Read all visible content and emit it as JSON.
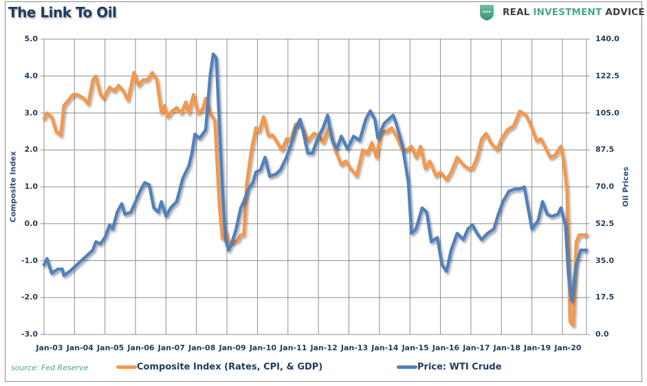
{
  "title": "The Link To Oil",
  "brand": {
    "prefix": "REAL ",
    "accent": "INVESTMENT",
    "suffix": " ADVICE",
    "icon": "shield-dots-icon",
    "accent_color": "#4aa58d"
  },
  "source": "source: Fed Reserve",
  "legend": [
    {
      "label": "Composite Index (Rates, CPI, & GDP)",
      "color": "#f79646"
    },
    {
      "label": "Price: WTI Crude",
      "color": "#4f81bd"
    }
  ],
  "chart_data": {
    "type": "line",
    "title": "The Link To Oil",
    "xlabel": "",
    "ylabel": "Composite Index",
    "y2label": "Oil Prices",
    "ylim": [
      -3.0,
      5.0
    ],
    "y2lim": [
      0.0,
      140.0
    ],
    "xlim": [
      2003.0,
      2020.83
    ],
    "yticks": [
      "5.0",
      "4.0",
      "3.0",
      "2.0",
      "1.0",
      "0.0",
      "-1.0",
      "-2.0",
      "-3.0"
    ],
    "y2ticks": [
      "140.0",
      "122.5",
      "105.0",
      "87.5",
      "70.0",
      "52.5",
      "35.0",
      "17.5",
      "0.0"
    ],
    "xticks": [
      "Jan-03",
      "Jan-04",
      "Jan-05",
      "Jan-06",
      "Jan-07",
      "Jan-08",
      "Jan-09",
      "Jan-10",
      "Jan-11",
      "Jan-12",
      "Jan-13",
      "Jan-14",
      "Jan-15",
      "Jan-16",
      "Jan-17",
      "Jan-18",
      "Jan-19",
      "Jan-20"
    ],
    "grid": true,
    "legend_position": "bottom",
    "series": [
      {
        "name": "Composite Index (Rates, CPI, & GDP)",
        "axis": "left",
        "color": "#f79646",
        "points": [
          [
            2003.0,
            2.85
          ],
          [
            2003.1,
            3.0
          ],
          [
            2003.25,
            2.9
          ],
          [
            2003.4,
            2.5
          ],
          [
            2003.55,
            2.4
          ],
          [
            2003.65,
            3.2
          ],
          [
            2003.8,
            3.35
          ],
          [
            2003.95,
            3.5
          ],
          [
            2004.1,
            3.5
          ],
          [
            2004.3,
            3.4
          ],
          [
            2004.45,
            3.25
          ],
          [
            2004.6,
            3.9
          ],
          [
            2004.7,
            4.0
          ],
          [
            2004.85,
            3.5
          ],
          [
            2004.95,
            3.4
          ],
          [
            2005.15,
            3.7
          ],
          [
            2005.3,
            3.6
          ],
          [
            2005.45,
            3.75
          ],
          [
            2005.6,
            3.6
          ],
          [
            2005.75,
            3.35
          ],
          [
            2005.95,
            4.1
          ],
          [
            2006.1,
            3.75
          ],
          [
            2006.25,
            3.9
          ],
          [
            2006.4,
            3.9
          ],
          [
            2006.55,
            4.1
          ],
          [
            2006.7,
            3.9
          ],
          [
            2006.85,
            3.0
          ],
          [
            2006.95,
            3.2
          ],
          [
            2007.05,
            2.9
          ],
          [
            2007.2,
            3.05
          ],
          [
            2007.35,
            3.15
          ],
          [
            2007.5,
            3.0
          ],
          [
            2007.65,
            3.3
          ],
          [
            2007.75,
            3.0
          ],
          [
            2007.9,
            3.5
          ],
          [
            2008.05,
            3.0
          ],
          [
            2008.2,
            3.1
          ],
          [
            2008.3,
            3.4
          ],
          [
            2008.45,
            3.0
          ],
          [
            2008.6,
            2.8
          ],
          [
            2008.75,
            0.5
          ],
          [
            2008.85,
            -0.4
          ],
          [
            2008.95,
            -0.2
          ],
          [
            2009.05,
            -0.5
          ],
          [
            2009.2,
            -0.5
          ],
          [
            2009.35,
            -0.45
          ],
          [
            2009.45,
            -0.3
          ],
          [
            2009.55,
            -0.3
          ],
          [
            2009.65,
            1.1
          ],
          [
            2009.8,
            2.0
          ],
          [
            2009.95,
            2.6
          ],
          [
            2010.05,
            2.5
          ],
          [
            2010.2,
            2.9
          ],
          [
            2010.35,
            2.4
          ],
          [
            2010.5,
            2.4
          ],
          [
            2010.65,
            2.2
          ],
          [
            2010.8,
            2.0
          ],
          [
            2010.95,
            2.3
          ],
          [
            2011.1,
            2.3
          ],
          [
            2011.25,
            2.7
          ],
          [
            2011.45,
            2.65
          ],
          [
            2011.65,
            2.25
          ],
          [
            2011.85,
            2.45
          ],
          [
            2012.0,
            2.4
          ],
          [
            2012.15,
            2.2
          ],
          [
            2012.35,
            2.6
          ],
          [
            2012.55,
            2.0
          ],
          [
            2012.75,
            1.6
          ],
          [
            2012.9,
            1.7
          ],
          [
            2013.05,
            1.5
          ],
          [
            2013.25,
            1.3
          ],
          [
            2013.45,
            2.0
          ],
          [
            2013.6,
            1.9
          ],
          [
            2013.75,
            2.2
          ],
          [
            2013.9,
            1.8
          ],
          [
            2014.05,
            2.5
          ],
          [
            2014.25,
            2.5
          ],
          [
            2014.4,
            2.6
          ],
          [
            2014.6,
            2.3
          ],
          [
            2014.75,
            2.0
          ],
          [
            2014.9,
            2.0
          ],
          [
            2015.05,
            2.1
          ],
          [
            2015.2,
            1.8
          ],
          [
            2015.35,
            2.1
          ],
          [
            2015.5,
            1.5
          ],
          [
            2015.65,
            1.7
          ],
          [
            2015.85,
            1.3
          ],
          [
            2016.0,
            1.4
          ],
          [
            2016.2,
            1.2
          ],
          [
            2016.35,
            1.4
          ],
          [
            2016.55,
            1.8
          ],
          [
            2016.75,
            1.6
          ],
          [
            2016.9,
            1.5
          ],
          [
            2017.05,
            1.5
          ],
          [
            2017.2,
            1.8
          ],
          [
            2017.35,
            2.3
          ],
          [
            2017.5,
            2.45
          ],
          [
            2017.65,
            2.2
          ],
          [
            2017.85,
            2.0
          ],
          [
            2018.0,
            2.3
          ],
          [
            2018.2,
            2.55
          ],
          [
            2018.4,
            2.65
          ],
          [
            2018.6,
            3.05
          ],
          [
            2018.8,
            2.95
          ],
          [
            2018.95,
            2.7
          ],
          [
            2019.15,
            2.25
          ],
          [
            2019.3,
            2.3
          ],
          [
            2019.45,
            2.05
          ],
          [
            2019.6,
            1.8
          ],
          [
            2019.75,
            1.85
          ],
          [
            2019.95,
            2.1
          ],
          [
            2020.05,
            1.65
          ],
          [
            2020.15,
            0.9
          ],
          [
            2020.25,
            -2.65
          ],
          [
            2020.35,
            -2.75
          ],
          [
            2020.45,
            -0.5
          ],
          [
            2020.55,
            -0.3
          ],
          [
            2020.7,
            -0.3
          ],
          [
            2020.8,
            -0.3
          ]
        ]
      },
      {
        "name": "Price: WTI Crude",
        "axis": "right",
        "color": "#4f81bd",
        "points": [
          [
            2003.0,
            33
          ],
          [
            2003.1,
            36
          ],
          [
            2003.25,
            29
          ],
          [
            2003.45,
            31
          ],
          [
            2003.6,
            31
          ],
          [
            2003.65,
            28
          ],
          [
            2003.85,
            30
          ],
          [
            2004.0,
            32
          ],
          [
            2004.15,
            34
          ],
          [
            2004.3,
            36
          ],
          [
            2004.45,
            38
          ],
          [
            2004.6,
            40
          ],
          [
            2004.7,
            44
          ],
          [
            2004.85,
            43
          ],
          [
            2005.0,
            46
          ],
          [
            2005.15,
            52
          ],
          [
            2005.25,
            50
          ],
          [
            2005.4,
            58
          ],
          [
            2005.55,
            62
          ],
          [
            2005.65,
            57
          ],
          [
            2005.85,
            58
          ],
          [
            2006.0,
            63
          ],
          [
            2006.15,
            68
          ],
          [
            2006.3,
            72
          ],
          [
            2006.45,
            71
          ],
          [
            2006.6,
            60
          ],
          [
            2006.75,
            58
          ],
          [
            2006.85,
            63
          ],
          [
            2007.0,
            56
          ],
          [
            2007.15,
            60
          ],
          [
            2007.35,
            63
          ],
          [
            2007.55,
            74
          ],
          [
            2007.75,
            80
          ],
          [
            2007.85,
            86
          ],
          [
            2007.95,
            95
          ],
          [
            2008.1,
            93
          ],
          [
            2008.3,
            97
          ],
          [
            2008.45,
            123
          ],
          [
            2008.55,
            133
          ],
          [
            2008.65,
            131
          ],
          [
            2008.75,
            100
          ],
          [
            2008.85,
            70
          ],
          [
            2008.95,
            45
          ],
          [
            2009.05,
            40
          ],
          [
            2009.15,
            43
          ],
          [
            2009.3,
            50
          ],
          [
            2009.45,
            60
          ],
          [
            2009.55,
            63
          ],
          [
            2009.7,
            69
          ],
          [
            2009.85,
            72
          ],
          [
            2009.95,
            77
          ],
          [
            2010.1,
            78
          ],
          [
            2010.25,
            84
          ],
          [
            2010.4,
            75
          ],
          [
            2010.6,
            76
          ],
          [
            2010.75,
            78
          ],
          [
            2010.95,
            84
          ],
          [
            2011.1,
            90
          ],
          [
            2011.25,
            98
          ],
          [
            2011.4,
            102
          ],
          [
            2011.5,
            96
          ],
          [
            2011.65,
            86
          ],
          [
            2011.8,
            86
          ],
          [
            2011.95,
            92
          ],
          [
            2012.15,
            98
          ],
          [
            2012.3,
            104
          ],
          [
            2012.45,
            92
          ],
          [
            2012.6,
            88
          ],
          [
            2012.75,
            94
          ],
          [
            2012.95,
            88
          ],
          [
            2013.15,
            94
          ],
          [
            2013.35,
            92
          ],
          [
            2013.55,
            102
          ],
          [
            2013.7,
            106
          ],
          [
            2013.85,
            102
          ],
          [
            2013.95,
            93
          ],
          [
            2014.15,
            100
          ],
          [
            2014.3,
            102
          ],
          [
            2014.45,
            104
          ],
          [
            2014.55,
            100
          ],
          [
            2014.75,
            90
          ],
          [
            2014.95,
            72
          ],
          [
            2015.05,
            48
          ],
          [
            2015.2,
            50
          ],
          [
            2015.4,
            60
          ],
          [
            2015.55,
            58
          ],
          [
            2015.7,
            44
          ],
          [
            2015.9,
            46
          ],
          [
            2016.05,
            33
          ],
          [
            2016.2,
            30
          ],
          [
            2016.35,
            40
          ],
          [
            2016.55,
            48
          ],
          [
            2016.75,
            45
          ],
          [
            2016.9,
            50
          ],
          [
            2017.05,
            52
          ],
          [
            2017.2,
            48
          ],
          [
            2017.35,
            45
          ],
          [
            2017.55,
            48
          ],
          [
            2017.75,
            50
          ],
          [
            2017.9,
            57
          ],
          [
            2018.05,
            63
          ],
          [
            2018.25,
            68
          ],
          [
            2018.45,
            69
          ],
          [
            2018.6,
            69
          ],
          [
            2018.75,
            70
          ],
          [
            2018.9,
            58
          ],
          [
            2019.0,
            50
          ],
          [
            2019.2,
            54
          ],
          [
            2019.35,
            63
          ],
          [
            2019.5,
            57
          ],
          [
            2019.65,
            56
          ],
          [
            2019.85,
            57
          ],
          [
            2019.95,
            60
          ],
          [
            2020.1,
            52
          ],
          [
            2020.2,
            28
          ],
          [
            2020.3,
            16
          ],
          [
            2020.45,
            33
          ],
          [
            2020.6,
            40
          ],
          [
            2020.7,
            40
          ],
          [
            2020.8,
            40
          ]
        ]
      }
    ]
  }
}
